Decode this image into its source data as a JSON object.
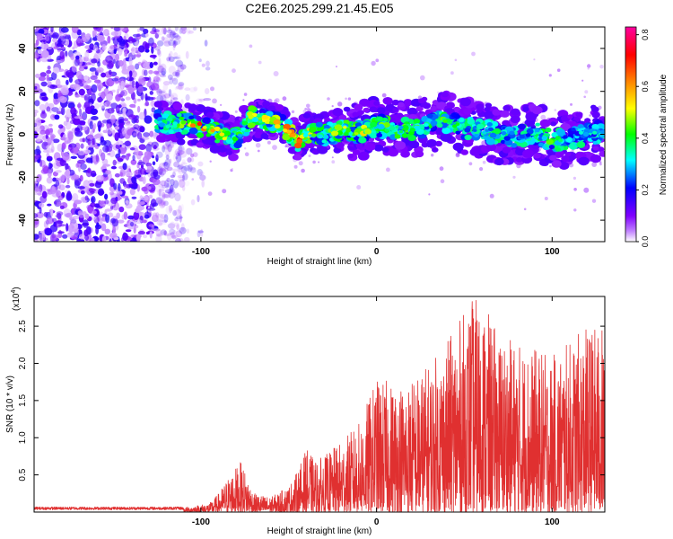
{
  "figure_title": "C2E6.2025.299.21.45.E05",
  "chart_data": [
    {
      "type": "heatmap",
      "title": "C2E6.2025.299.21.45.E05",
      "xlabel": "Height of straight line (km)",
      "ylabel": "Frequency (Hz)",
      "xlim": [
        -195,
        130
      ],
      "ylim": [
        -50,
        50
      ],
      "xticks": [
        -100,
        0,
        100
      ],
      "xtick_labels": [
        "-100",
        "0",
        "100"
      ],
      "yticks": [
        -40,
        -20,
        0,
        20,
        40
      ],
      "ytick_labels": [
        "-40",
        "-20",
        "0",
        "20",
        "40"
      ],
      "colorbar": {
        "label": "Normalized spectral amplitude",
        "range": [
          0,
          0.83
        ],
        "ticks": [
          0,
          0.2,
          0.4,
          0.6,
          0.8
        ],
        "tick_labels": [
          "0.0",
          "0.2",
          "0.4",
          "0.6",
          "0.8"
        ],
        "colormap": [
          "#ffffff",
          "#8000ff",
          "#0000ff",
          "#00ffff",
          "#00ff00",
          "#ffff00",
          "#ff8000",
          "#ff0000",
          "#ff00a0"
        ]
      },
      "ridge_x": [
        -125,
        -110,
        -100,
        -90,
        -80,
        -72,
        -60,
        -50,
        -45,
        -40,
        -30,
        -20,
        -10,
        0,
        10,
        20,
        30,
        40,
        50,
        60,
        70,
        80,
        90,
        100,
        110,
        120,
        130
      ],
      "ridge_y": [
        6,
        5,
        4,
        1,
        -3,
        8,
        6,
        2,
        -4,
        1,
        0,
        2,
        1,
        4,
        3,
        2,
        5,
        6,
        3,
        2,
        0,
        -1,
        1,
        -3,
        -2,
        0,
        1
      ],
      "ridge_amplitude": [
        0.35,
        0.5,
        0.7,
        0.55,
        0.4,
        0.5,
        0.6,
        0.65,
        0.75,
        0.55,
        0.45,
        0.5,
        0.55,
        0.45,
        0.5,
        0.45,
        0.4,
        0.45,
        0.4,
        0.35,
        0.4,
        0.35,
        0.4,
        0.45,
        0.35,
        0.35,
        0.35
      ],
      "noise_region_x": [
        -195,
        -105
      ]
    },
    {
      "type": "line",
      "xlabel": "Height of straight line (km)",
      "ylabel": "SNR (10 * v/v)",
      "y_multiplier": "(x10",
      "y_multiplier_exp": "4",
      "y_multiplier_close": ")",
      "xlim": [
        -195,
        130
      ],
      "ylim": [
        0,
        2.9
      ],
      "xticks": [
        -100,
        0,
        100
      ],
      "xtick_labels": [
        "-100",
        "0",
        "100"
      ],
      "yticks": [
        0.5,
        1.0,
        1.5,
        2.0,
        2.5
      ],
      "ytick_labels": [
        "0.5",
        "1.0",
        "1.5",
        "2.0",
        "2.5"
      ],
      "series": [
        {
          "name": "SNR",
          "color": "#e03030",
          "envelope_x": [
            -195,
            -110,
            -95,
            -90,
            -85,
            -80,
            -77,
            -70,
            -60,
            -50,
            -45,
            -40,
            -35,
            -30,
            -20,
            -10,
            0,
            10,
            20,
            30,
            40,
            50,
            55,
            60,
            65,
            70,
            80,
            90,
            100,
            110,
            120,
            130
          ],
          "envelope_y": [
            0.05,
            0.06,
            0.12,
            0.25,
            0.45,
            0.6,
            0.68,
            0.25,
            0.2,
            0.35,
            0.55,
            0.85,
            0.7,
            0.75,
            0.95,
            1.2,
            1.8,
            1.75,
            1.8,
            2.0,
            2.3,
            2.7,
            2.9,
            2.85,
            2.6,
            2.4,
            2.3,
            2.2,
            2.1,
            2.3,
            2.5,
            2.5
          ]
        }
      ]
    }
  ]
}
